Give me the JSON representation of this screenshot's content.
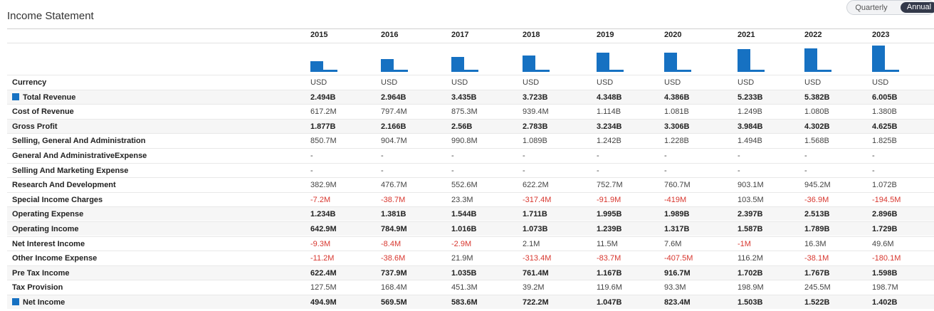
{
  "title": "Income Statement",
  "toggle": {
    "quarterly": "Quarterly",
    "annual": "Annual"
  },
  "colors": {
    "accent": "#1671c2",
    "negative": "#d8372f",
    "toggle_active": "#33394a"
  },
  "years": [
    "2015",
    "2016",
    "2017",
    "2018",
    "2019",
    "2020",
    "2021",
    "2022",
    "2023"
  ],
  "sparkline_revenue": [
    2.494,
    2.964,
    3.435,
    3.723,
    4.348,
    4.386,
    5.233,
    5.382,
    6.005
  ],
  "rows": [
    {
      "label": "Currency",
      "bold": false,
      "shade": false,
      "icon": false,
      "values": [
        "USD",
        "USD",
        "USD",
        "USD",
        "USD",
        "USD",
        "USD",
        "USD",
        "USD"
      ]
    },
    {
      "label": "Total Revenue",
      "bold": true,
      "shade": true,
      "icon": true,
      "values": [
        "2.494B",
        "2.964B",
        "3.435B",
        "3.723B",
        "4.348B",
        "4.386B",
        "5.233B",
        "5.382B",
        "6.005B"
      ]
    },
    {
      "label": "Cost of Revenue",
      "bold": false,
      "shade": false,
      "icon": false,
      "values": [
        "617.2M",
        "797.4M",
        "875.3M",
        "939.4M",
        "1.114B",
        "1.081B",
        "1.249B",
        "1.080B",
        "1.380B"
      ]
    },
    {
      "label": "Gross Profit",
      "bold": true,
      "shade": true,
      "icon": false,
      "values": [
        "1.877B",
        "2.166B",
        "2.56B",
        "2.783B",
        "3.234B",
        "3.306B",
        "3.984B",
        "4.302B",
        "4.625B"
      ]
    },
    {
      "label": "Selling, General And Administration",
      "bold": false,
      "shade": false,
      "icon": false,
      "values": [
        "850.7M",
        "904.7M",
        "990.8M",
        "1.089B",
        "1.242B",
        "1.228B",
        "1.494B",
        "1.568B",
        "1.825B"
      ]
    },
    {
      "label": "General And AdministrativeExpense",
      "bold": false,
      "shade": false,
      "icon": false,
      "values": [
        "-",
        "-",
        "-",
        "-",
        "-",
        "-",
        "-",
        "-",
        "-"
      ]
    },
    {
      "label": "Selling And Marketing Expense",
      "bold": false,
      "shade": false,
      "icon": false,
      "values": [
        "-",
        "-",
        "-",
        "-",
        "-",
        "-",
        "-",
        "-",
        "-"
      ]
    },
    {
      "label": "Research And Development",
      "bold": false,
      "shade": false,
      "icon": false,
      "values": [
        "382.9M",
        "476.7M",
        "552.6M",
        "622.2M",
        "752.7M",
        "760.7M",
        "903.1M",
        "945.2M",
        "1.072B"
      ]
    },
    {
      "label": "Special Income Charges",
      "bold": false,
      "shade": false,
      "icon": false,
      "values": [
        "-7.2M",
        "-38.7M",
        "23.3M",
        "-317.4M",
        "-91.9M",
        "-419M",
        "103.5M",
        "-36.9M",
        "-194.5M"
      ]
    },
    {
      "label": "Operating Expense",
      "bold": true,
      "shade": true,
      "icon": false,
      "values": [
        "1.234B",
        "1.381B",
        "1.544B",
        "1.711B",
        "1.995B",
        "1.989B",
        "2.397B",
        "2.513B",
        "2.896B"
      ]
    },
    {
      "label": "Operating Income",
      "bold": true,
      "shade": true,
      "icon": false,
      "values": [
        "642.9M",
        "784.9M",
        "1.016B",
        "1.073B",
        "1.239B",
        "1.317B",
        "1.587B",
        "1.789B",
        "1.729B"
      ]
    },
    {
      "label": "Net Interest Income",
      "bold": false,
      "shade": false,
      "icon": false,
      "values": [
        "-9.3M",
        "-8.4M",
        "-2.9M",
        "2.1M",
        "11.5M",
        "7.6M",
        "-1M",
        "16.3M",
        "49.6M"
      ]
    },
    {
      "label": "Other Income Expense",
      "bold": false,
      "shade": false,
      "icon": false,
      "values": [
        "-11.2M",
        "-38.6M",
        "21.9M",
        "-313.4M",
        "-83.7M",
        "-407.5M",
        "116.2M",
        "-38.1M",
        "-180.1M"
      ]
    },
    {
      "label": "Pre Tax Income",
      "bold": true,
      "shade": true,
      "icon": false,
      "values": [
        "622.4M",
        "737.9M",
        "1.035B",
        "761.4M",
        "1.167B",
        "916.7M",
        "1.702B",
        "1.767B",
        "1.598B"
      ]
    },
    {
      "label": "Tax Provision",
      "bold": false,
      "shade": false,
      "icon": false,
      "values": [
        "127.5M",
        "168.4M",
        "451.3M",
        "39.2M",
        "119.6M",
        "93.3M",
        "198.9M",
        "245.5M",
        "198.7M"
      ]
    },
    {
      "label": "Net Income",
      "bold": true,
      "shade": true,
      "icon": true,
      "values": [
        "494.9M",
        "569.5M",
        "583.6M",
        "722.2M",
        "1.047B",
        "823.4M",
        "1.503B",
        "1.522B",
        "1.402B"
      ]
    }
  ]
}
